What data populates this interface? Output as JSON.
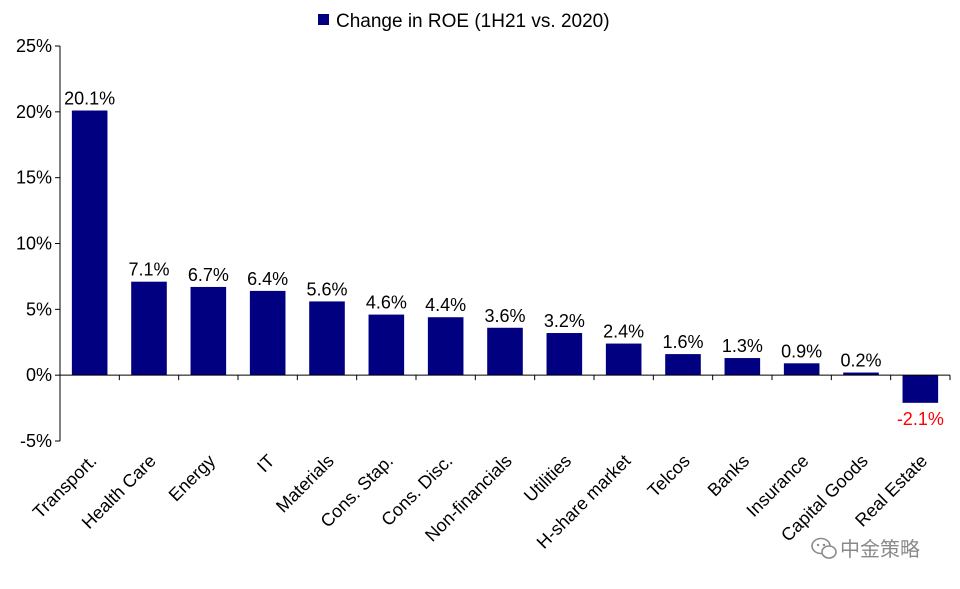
{
  "chart_data": {
    "type": "bar",
    "legend": "Change in ROE (1H21 vs. 2020)",
    "legend_position": "top-center",
    "categories": [
      "Transport.",
      "Health Care",
      "Energy",
      "IT",
      "Materials",
      "Cons. Stap.",
      "Cons. Disc.",
      "Non-financials",
      "Utilities",
      "H-share market",
      "Telcos",
      "Banks",
      "Insurance",
      "Capital Goods",
      "Real Estate"
    ],
    "series": [
      {
        "name": "Change in ROE (1H21 vs. 2020)",
        "values": [
          20.1,
          7.1,
          6.7,
          6.4,
          5.6,
          4.6,
          4.4,
          3.6,
          3.2,
          2.4,
          1.6,
          1.3,
          0.9,
          0.2,
          -2.1
        ]
      }
    ],
    "data_labels": [
      "20.1%",
      "7.1%",
      "6.7%",
      "6.4%",
      "5.6%",
      "4.6%",
      "4.4%",
      "3.6%",
      "3.2%",
      "2.4%",
      "1.6%",
      "1.3%",
      "0.9%",
      "0.2%",
      "-2.1%"
    ],
    "y_ticks": [
      "25%",
      "20%",
      "15%",
      "10%",
      "5%",
      "0%",
      "-5%"
    ],
    "y_tick_values": [
      25,
      20,
      15,
      10,
      5,
      0,
      -5
    ],
    "ylim": [
      -5,
      25
    ],
    "grid": false,
    "title": "",
    "xlabel": "",
    "ylabel": ""
  },
  "colors": {
    "bar": "#000080",
    "negative_label": "#ff0000",
    "axis": "#000000",
    "watermark": "#8a8a8a"
  },
  "watermark": {
    "text": "中金策略",
    "icon": "wechat-icon"
  }
}
